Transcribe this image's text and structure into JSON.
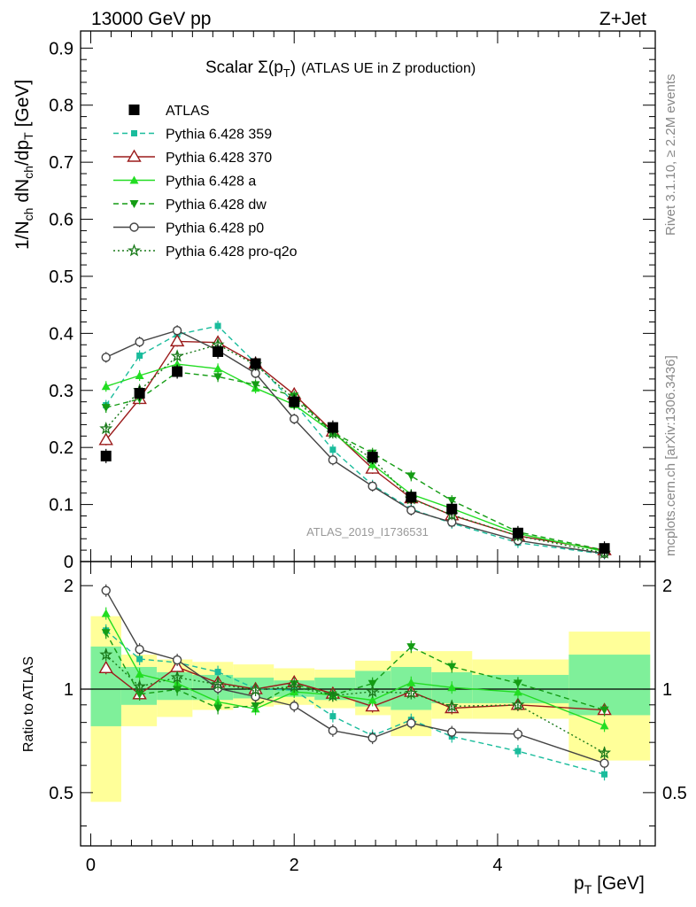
{
  "header": {
    "left": "13000 GeV pp",
    "right": "Z+Jet"
  },
  "sidebar": {
    "rivet": "Rivet 3.1.10, ≥ 2.2M events",
    "mcplots": "mcplots.cern.ch [arXiv:1306.3436]"
  },
  "colors": {
    "atlas": "#000000",
    "p359": "#1abc9c",
    "p370": "#9b1b1b",
    "pa": "#22dd22",
    "pdw": "#149c14",
    "pp0": "#444444",
    "pq2o": "#1a7a1a",
    "band_inner": "#7ff09a",
    "band_outer": "#ffff99"
  },
  "chart_data": {
    "type": "line",
    "title_main": "Scalar Σ(p",
    "title_sub": "T",
    "title_close": ")",
    "title_suffix": "(ATLAS UE in Z production)",
    "analysis_id": "ATLAS_2019_I1736531",
    "xlabel": "p",
    "xlabel_sub": "T",
    "xlabel_unit": " [GeV]",
    "ylabel": "1/N",
    "ylabel_sub1": "ch",
    "ylabel_mid": " dN",
    "ylabel_sub2": "ch",
    "ylabel_mid2": "/dp",
    "ylabel_sub3": "T",
    "ylabel_unit": " [GeV]",
    "ratio_ylabel": "Ratio to ATLAS",
    "xlim": [
      -0.1,
      5.55
    ],
    "ylim": [
      0,
      0.93
    ],
    "ratio_ylim": [
      0.35,
      2.35
    ],
    "x_ticks": [
      "0",
      "2",
      "4"
    ],
    "x_tick_values": [
      0,
      2,
      4
    ],
    "y_ticks": [
      "0",
      "0.1",
      "0.2",
      "0.3",
      "0.4",
      "0.5",
      "0.6",
      "0.7",
      "0.8",
      "0.9"
    ],
    "y_tick_values": [
      0,
      0.1,
      0.2,
      0.3,
      0.4,
      0.5,
      0.6,
      0.7,
      0.8,
      0.9
    ],
    "ratio_ticks": [
      "0.5",
      "1",
      "2"
    ],
    "ratio_tick_values": [
      0.5,
      1,
      2
    ],
    "bins": [
      [
        0.0,
        0.3
      ],
      [
        0.3,
        0.65
      ],
      [
        0.65,
        1.0
      ],
      [
        1.0,
        1.4
      ],
      [
        1.4,
        1.8
      ],
      [
        1.8,
        2.2
      ],
      [
        2.2,
        2.6
      ],
      [
        2.6,
        2.95
      ],
      [
        2.95,
        3.35
      ],
      [
        3.35,
        3.75
      ],
      [
        3.75,
        4.7
      ],
      [
        4.7,
        5.5
      ]
    ],
    "x": [
      0.15,
      0.48,
      0.85,
      1.25,
      1.62,
      2.0,
      2.38,
      2.77,
      3.15,
      3.55,
      4.2,
      5.05
    ],
    "data": {
      "name": "ATLAS",
      "values": [
        0.185,
        0.295,
        0.333,
        0.368,
        0.347,
        0.28,
        0.235,
        0.183,
        0.113,
        0.092,
        0.05,
        0.023
      ]
    },
    "band_inner": [
      [
        0.78,
        1.33
      ],
      [
        0.9,
        1.16
      ],
      [
        0.93,
        1.12
      ],
      [
        0.93,
        1.1
      ],
      [
        0.94,
        1.08
      ],
      [
        0.95,
        1.06
      ],
      [
        0.93,
        1.08
      ],
      [
        0.89,
        1.13
      ],
      [
        0.87,
        1.16
      ],
      [
        0.91,
        1.12
      ],
      [
        0.91,
        1.1
      ],
      [
        0.84,
        1.26
      ]
    ],
    "band_outer": [
      [
        0.47,
        1.63
      ],
      [
        0.78,
        1.26
      ],
      [
        0.83,
        1.22
      ],
      [
        0.87,
        1.2
      ],
      [
        0.89,
        1.18
      ],
      [
        0.9,
        1.15
      ],
      [
        0.88,
        1.14
      ],
      [
        0.84,
        1.21
      ],
      [
        0.73,
        1.29
      ],
      [
        0.82,
        1.29
      ],
      [
        0.82,
        1.22
      ],
      [
        0.62,
        1.47
      ]
    ],
    "series": [
      {
        "name": "Pythia 6.428 359",
        "color_key": "p359",
        "marker": "square-small",
        "dash": "6,4",
        "values": [
          0.274,
          0.361,
          0.398,
          0.413,
          0.348,
          0.278,
          0.196,
          0.134,
          0.092,
          0.067,
          0.033,
          0.013
        ]
      },
      {
        "name": "Pythia 6.428 370",
        "color_key": "p370",
        "marker": "triangle-open",
        "dash": "",
        "values": [
          0.213,
          0.285,
          0.386,
          0.384,
          0.347,
          0.293,
          0.228,
          0.163,
          0.111,
          0.081,
          0.045,
          0.02
        ]
      },
      {
        "name": "Pythia 6.428 a",
        "color_key": "pa",
        "marker": "triangle-up",
        "dash": "",
        "values": [
          0.307,
          0.326,
          0.346,
          0.338,
          0.304,
          0.275,
          0.226,
          0.17,
          0.118,
          0.093,
          0.049,
          0.018
        ]
      },
      {
        "name": "Pythia 6.428 dw",
        "color_key": "pdw",
        "marker": "triangle-down",
        "dash": "6,4",
        "values": [
          0.27,
          0.285,
          0.332,
          0.324,
          0.31,
          0.29,
          0.226,
          0.19,
          0.15,
          0.107,
          0.052,
          0.02
        ]
      },
      {
        "name": "Pythia 6.428 p0",
        "color_key": "pp0",
        "marker": "circle-open",
        "dash": "",
        "values": [
          0.358,
          0.385,
          0.405,
          0.37,
          0.33,
          0.25,
          0.178,
          0.132,
          0.09,
          0.069,
          0.037,
          0.014
        ]
      },
      {
        "name": "Pythia 6.428 pro-q2o",
        "color_key": "pq2o",
        "marker": "star",
        "dash": "2,3",
        "values": [
          0.233,
          0.3,
          0.36,
          0.38,
          0.345,
          0.285,
          0.225,
          0.18,
          0.11,
          0.082,
          0.045,
          0.015
        ]
      }
    ]
  }
}
